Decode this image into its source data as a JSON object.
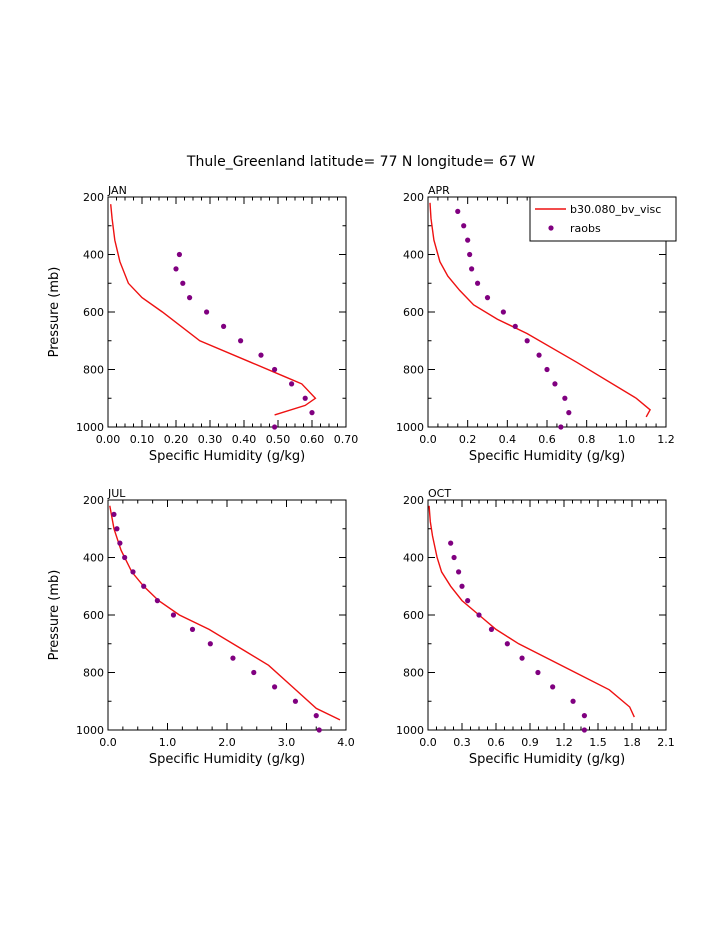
{
  "figure_title": "Thule_Greenland  latitude= 77 N longitude= 67 W",
  "colors": {
    "model": "#ee1111",
    "obs": "#800080",
    "axis": "#000000"
  },
  "legend": {
    "model_label": "b30.080_bv_visc",
    "obs_label": "raobs",
    "placement": "top-right of APR panel"
  },
  "chart_data": [
    {
      "type": "line",
      "title": "JAN",
      "xlabel": "Specific Humidity (g/kg)",
      "ylabel": "Pressure (mb)",
      "xlim": [
        0,
        0.7
      ],
      "ylim": [
        1000,
        200
      ],
      "xticks": [
        "0.00",
        "0.10",
        "0.20",
        "0.30",
        "0.40",
        "0.50",
        "0.60",
        "0.70"
      ],
      "yticks": [
        "200",
        "400",
        "600",
        "800",
        "1000"
      ],
      "series": [
        {
          "name": "b30.080_bv_visc",
          "kind": "line",
          "x": [
            0.008,
            0.012,
            0.02,
            0.035,
            0.06,
            0.1,
            0.16,
            0.27,
            0.42,
            0.52,
            0.57,
            0.61,
            0.58,
            0.49
          ],
          "y": [
            225,
            275,
            350,
            425,
            500,
            550,
            600,
            700,
            775,
            825,
            850,
            900,
            925,
            958
          ]
        },
        {
          "name": "raobs",
          "kind": "scatter",
          "x": [
            0.49,
            0.6,
            0.58,
            0.54,
            0.49,
            0.45,
            0.39,
            0.34,
            0.29,
            0.24,
            0.22,
            0.2,
            0.21
          ],
          "y": [
            1000,
            950,
            900,
            850,
            800,
            750,
            700,
            650,
            600,
            550,
            500,
            450,
            400
          ]
        }
      ]
    },
    {
      "type": "line",
      "title": "APR",
      "xlabel": "Specific Humidity (g/kg)",
      "ylabel": "",
      "xlim": [
        0,
        1.2
      ],
      "ylim": [
        1000,
        200
      ],
      "xticks": [
        "0.0",
        "0.2",
        "0.4",
        "0.6",
        "0.8",
        "1.0",
        "1.2"
      ],
      "yticks": [
        "200",
        "400",
        "600",
        "800",
        "1000"
      ],
      "series": [
        {
          "name": "b30.080_bv_visc",
          "kind": "line",
          "x": [
            0.01,
            0.015,
            0.03,
            0.06,
            0.1,
            0.16,
            0.23,
            0.35,
            0.5,
            0.75,
            1.05,
            1.12,
            1.1
          ],
          "y": [
            220,
            275,
            350,
            425,
            475,
            525,
            575,
            625,
            675,
            775,
            900,
            940,
            965
          ]
        },
        {
          "name": "raobs",
          "kind": "scatter",
          "x": [
            0.67,
            0.71,
            0.69,
            0.64,
            0.6,
            0.56,
            0.5,
            0.44,
            0.38,
            0.3,
            0.25,
            0.22,
            0.21,
            0.2,
            0.18,
            0.15
          ],
          "y": [
            1000,
            950,
            900,
            850,
            800,
            750,
            700,
            650,
            600,
            550,
            500,
            450,
            400,
            350,
            300,
            250
          ]
        }
      ]
    },
    {
      "type": "line",
      "title": "JUL",
      "xlabel": "Specific Humidity (g/kg)",
      "ylabel": "Pressure (mb)",
      "xlim": [
        0,
        4.0
      ],
      "ylim": [
        1000,
        200
      ],
      "xticks": [
        "0.0",
        "1.0",
        "2.0",
        "3.0",
        "4.0"
      ],
      "yticks": [
        "200",
        "400",
        "600",
        "800",
        "1000"
      ],
      "series": [
        {
          "name": "b30.080_bv_visc",
          "kind": "line",
          "x": [
            0.03,
            0.1,
            0.22,
            0.4,
            0.6,
            0.85,
            1.2,
            1.7,
            2.3,
            2.7,
            3.1,
            3.5,
            3.9
          ],
          "y": [
            220,
            300,
            375,
            450,
            500,
            550,
            600,
            650,
            725,
            775,
            850,
            925,
            965
          ]
        },
        {
          "name": "raobs",
          "kind": "scatter",
          "x": [
            3.55,
            3.5,
            3.15,
            2.8,
            2.45,
            2.1,
            1.72,
            1.42,
            1.1,
            0.83,
            0.6,
            0.42,
            0.28,
            0.2,
            0.15,
            0.1
          ],
          "y": [
            1000,
            950,
            900,
            850,
            800,
            750,
            700,
            650,
            600,
            550,
            500,
            450,
            400,
            350,
            300,
            250
          ]
        }
      ]
    },
    {
      "type": "line",
      "title": "OCT",
      "xlabel": "Specific Humidity (g/kg)",
      "ylabel": "",
      "xlim": [
        0,
        2.1
      ],
      "ylim": [
        1000,
        200
      ],
      "xticks": [
        "0.0",
        "0.3",
        "0.6",
        "0.9",
        "1.2",
        "1.5",
        "1.8",
        "2.1"
      ],
      "yticks": [
        "200",
        "400",
        "600",
        "800",
        "1000"
      ],
      "series": [
        {
          "name": "b30.080_bv_visc",
          "kind": "line",
          "x": [
            0.01,
            0.02,
            0.04,
            0.08,
            0.12,
            0.2,
            0.3,
            0.45,
            0.6,
            0.8,
            1.05,
            1.3,
            1.6,
            1.78,
            1.82
          ],
          "y": [
            220,
            275,
            325,
            400,
            450,
            500,
            550,
            600,
            650,
            700,
            750,
            800,
            860,
            920,
            955
          ]
        },
        {
          "name": "raobs",
          "kind": "scatter",
          "x": [
            1.38,
            1.38,
            1.28,
            1.1,
            0.97,
            0.83,
            0.7,
            0.56,
            0.45,
            0.35,
            0.3,
            0.27,
            0.23,
            0.2
          ],
          "y": [
            1000,
            950,
            900,
            850,
            800,
            750,
            700,
            650,
            600,
            550,
            500,
            450,
            400,
            350
          ]
        }
      ]
    }
  ]
}
